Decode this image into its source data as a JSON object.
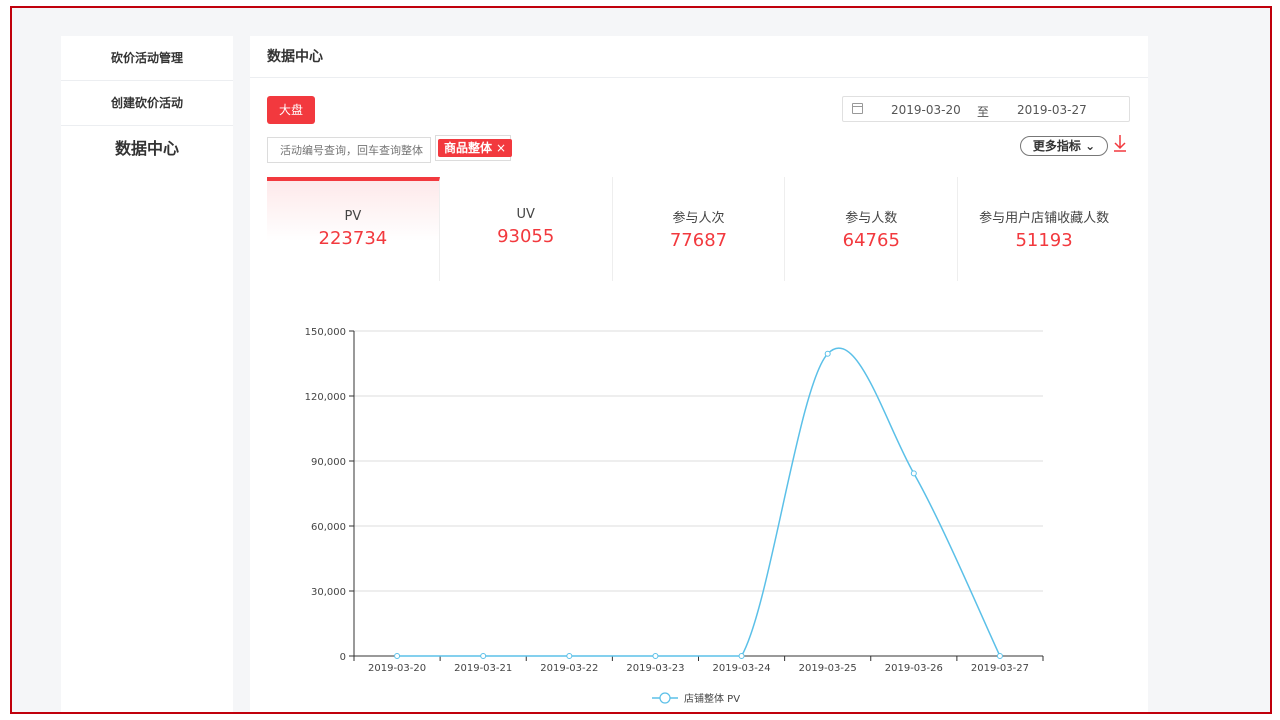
{
  "sidebar": {
    "items": [
      {
        "label": "砍价活动管理"
      },
      {
        "label": "创建砍价活动"
      },
      {
        "label": "数据中心"
      }
    ]
  },
  "main": {
    "title": "数据中心",
    "scope_button": "大盘",
    "date_range": {
      "start": "2019-03-20",
      "separator": "至",
      "end": "2019-03-27"
    },
    "search": {
      "placeholder": "活动编号查询，回车查询整体"
    },
    "filter_tag": {
      "label": "商品整体",
      "close": "×"
    },
    "more_metrics": "更多指标",
    "metrics": [
      {
        "label": "PV",
        "value": "223734"
      },
      {
        "label": "UV",
        "value": "93055"
      },
      {
        "label": "参与人次",
        "value": "77687"
      },
      {
        "label": "参与人数",
        "value": "64765"
      },
      {
        "label": "参与用户店铺收藏人数",
        "value": "51193"
      }
    ]
  },
  "colors": {
    "accent": "#f2393e",
    "line": "#5bc0e8"
  },
  "chart_data": {
    "type": "line",
    "x": [
      "2019-03-20",
      "2019-03-21",
      "2019-03-22",
      "2019-03-23",
      "2019-03-24",
      "2019-03-25",
      "2019-03-26",
      "2019-03-27"
    ],
    "series": [
      {
        "name": "店铺整体 PV",
        "values": [
          0,
          0,
          0,
          0,
          0,
          139500,
          84300,
          0
        ]
      }
    ],
    "ylim": [
      0,
      150000
    ],
    "yticks": [
      0,
      30000,
      60000,
      90000,
      120000,
      150000
    ],
    "ytick_labels": [
      "0",
      "30,000",
      "60,000",
      "90,000",
      "120,000",
      "150,000"
    ],
    "grid": true,
    "legend": "bottom-center"
  }
}
